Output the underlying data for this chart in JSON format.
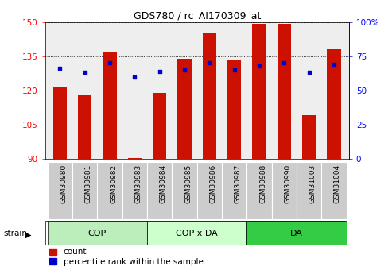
{
  "title": "GDS780 / rc_AI170309_at",
  "samples": [
    "GSM30980",
    "GSM30981",
    "GSM30982",
    "GSM30983",
    "GSM30984",
    "GSM30985",
    "GSM30986",
    "GSM30987",
    "GSM30988",
    "GSM30990",
    "GSM31003",
    "GSM31004"
  ],
  "red_values": [
    121.5,
    118.0,
    136.5,
    90.5,
    119.0,
    134.0,
    145.0,
    133.0,
    149.0,
    149.0,
    109.0,
    138.0
  ],
  "blue_values": [
    66,
    63,
    70,
    60,
    64,
    65,
    70,
    65,
    68,
    70,
    63,
    69
  ],
  "groups": [
    {
      "label": "COP",
      "start": 0,
      "end": 4,
      "color": "#bbeebb"
    },
    {
      "label": "COP x DA",
      "start": 4,
      "end": 8,
      "color": "#ccffcc"
    },
    {
      "label": "DA",
      "start": 8,
      "end": 12,
      "color": "#33cc44"
    }
  ],
  "ylim_left": [
    90,
    150
  ],
  "ylim_right": [
    0,
    100
  ],
  "yticks_left": [
    90,
    105,
    120,
    135,
    150
  ],
  "yticks_right": [
    0,
    25,
    50,
    75,
    100
  ],
  "bar_color": "#cc1100",
  "dot_color": "#0000cc",
  "bar_width": 0.55,
  "background_color": "#eeeeee",
  "legend_count_label": "count",
  "legend_pct_label": "percentile rank within the sample",
  "strain_label": "strain"
}
